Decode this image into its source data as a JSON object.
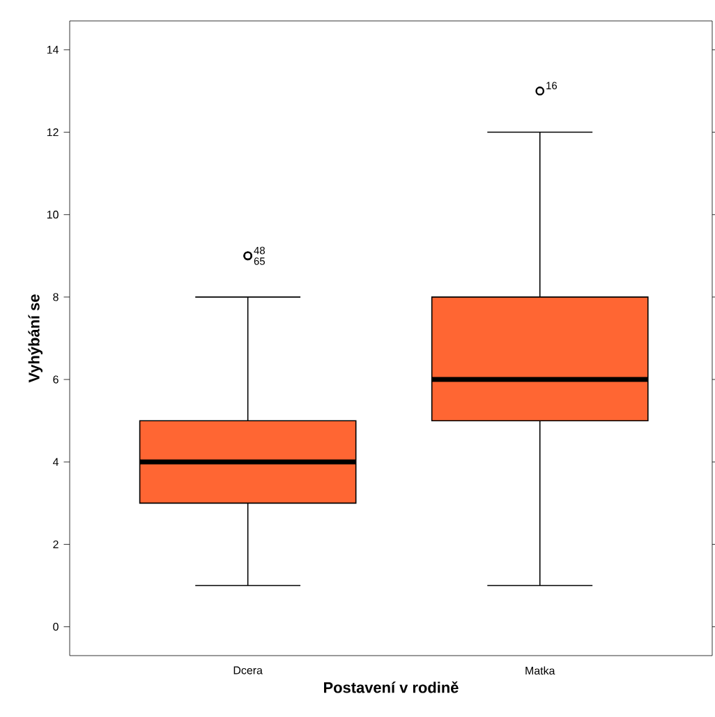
{
  "chart_data": {
    "type": "box",
    "xlabel": "Postavení v rodině",
    "ylabel": "Vyhýbání se",
    "categories": [
      "Dcera",
      "Matka"
    ],
    "boxes": [
      {
        "low": 1,
        "q1": 3,
        "median": 4,
        "q3": 5,
        "high": 8,
        "outliers": [
          9,
          9
        ]
      },
      {
        "low": 1,
        "q1": 5,
        "median": 6,
        "q3": 8,
        "high": 12,
        "outliers": [
          13
        ]
      }
    ],
    "color": "#ff6633",
    "marker": "circle",
    "ylim": [
      -0.7,
      14.7
    ],
    "yticks": [
      0,
      2,
      4,
      6,
      8,
      10,
      12,
      14
    ],
    "annotations": [
      "48",
      "65",
      "16"
    ]
  }
}
